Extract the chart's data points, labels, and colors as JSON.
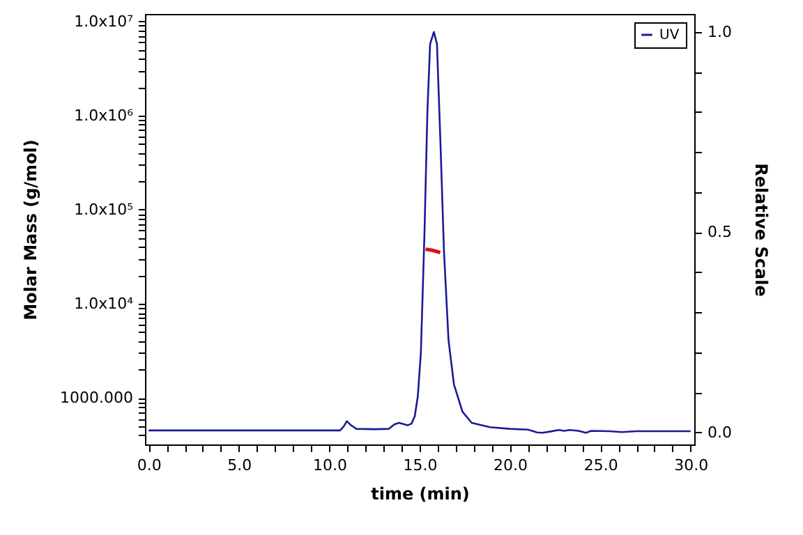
{
  "chart_data": {
    "type": "line",
    "xlabel": "time (min)",
    "ylabel": "Molar Mass (g/mol)",
    "y2label": "Relative Scale",
    "log": "y",
    "grid": false,
    "legend": "top right",
    "marker": "none",
    "line_style": "solid",
    "xlim": [
      -0.2,
      30.2
    ],
    "xticks": [
      {
        "value": 0,
        "label": "0.0"
      },
      {
        "value": 1,
        "label": null
      },
      {
        "value": 2,
        "label": null
      },
      {
        "value": 3,
        "label": null
      },
      {
        "value": 4,
        "label": null
      },
      {
        "value": 5,
        "label": "5.0"
      },
      {
        "value": 6,
        "label": null
      },
      {
        "value": 7,
        "label": null
      },
      {
        "value": 8,
        "label": null
      },
      {
        "value": 9,
        "label": null
      },
      {
        "value": 10,
        "label": "10.0"
      },
      {
        "value": 11,
        "label": null
      },
      {
        "value": 12,
        "label": null
      },
      {
        "value": 13,
        "label": null
      },
      {
        "value": 14,
        "label": null
      },
      {
        "value": 15,
        "label": "15.0"
      },
      {
        "value": 16,
        "label": null
      },
      {
        "value": 17,
        "label": null
      },
      {
        "value": 18,
        "label": null
      },
      {
        "value": 19,
        "label": null
      },
      {
        "value": 20,
        "label": "20.0"
      },
      {
        "value": 21,
        "label": null
      },
      {
        "value": 22,
        "label": null
      },
      {
        "value": 23,
        "label": null
      },
      {
        "value": 24,
        "label": null
      },
      {
        "value": 25,
        "label": "25.0"
      },
      {
        "value": 26,
        "label": null
      },
      {
        "value": 27,
        "label": null
      },
      {
        "value": 28,
        "label": null
      },
      {
        "value": 29,
        "label": null
      },
      {
        "value": 30,
        "label": "30.0"
      }
    ],
    "ylim": [
      320,
      12000000
    ],
    "yticks": [
      {
        "value": 400,
        "label": null
      },
      {
        "value": 500,
        "label": null
      },
      {
        "value": 600,
        "label": null
      },
      {
        "value": 700,
        "label": null
      },
      {
        "value": 800,
        "label": null
      },
      {
        "value": 900,
        "label": null
      },
      {
        "value": 1000,
        "label": "1000.000"
      },
      {
        "value": 2000,
        "label": null
      },
      {
        "value": 3000,
        "label": null
      },
      {
        "value": 4000,
        "label": null
      },
      {
        "value": 5000,
        "label": null
      },
      {
        "value": 6000,
        "label": null
      },
      {
        "value": 7000,
        "label": null
      },
      {
        "value": 8000,
        "label": null
      },
      {
        "value": 9000,
        "label": null
      },
      {
        "value": 10000,
        "label": "1.0x10⁴"
      },
      {
        "value": 20000,
        "label": null
      },
      {
        "value": 30000,
        "label": null
      },
      {
        "value": 40000,
        "label": null
      },
      {
        "value": 50000,
        "label": null
      },
      {
        "value": 60000,
        "label": null
      },
      {
        "value": 70000,
        "label": null
      },
      {
        "value": 80000,
        "label": null
      },
      {
        "value": 90000,
        "label": null
      },
      {
        "value": 100000,
        "label": "1.0x10⁵"
      },
      {
        "value": 200000,
        "label": null
      },
      {
        "value": 300000,
        "label": null
      },
      {
        "value": 400000,
        "label": null
      },
      {
        "value": 500000,
        "label": null
      },
      {
        "value": 600000,
        "label": null
      },
      {
        "value": 700000,
        "label": null
      },
      {
        "value": 800000,
        "label": null
      },
      {
        "value": 900000,
        "label": null
      },
      {
        "value": 1000000,
        "label": "1.0x10⁶"
      },
      {
        "value": 2000000,
        "label": null
      },
      {
        "value": 3000000,
        "label": null
      },
      {
        "value": 4000000,
        "label": null
      },
      {
        "value": 5000000,
        "label": null
      },
      {
        "value": 6000000,
        "label": null
      },
      {
        "value": 7000000,
        "label": null
      },
      {
        "value": 8000000,
        "label": null
      },
      {
        "value": 9000000,
        "label": null
      },
      {
        "value": 10000000,
        "label": "1.0x10⁷"
      }
    ],
    "y2lim": [
      -0.03,
      1.045
    ],
    "y2ticks": [
      {
        "value": 0,
        "label": "0.0"
      },
      {
        "value": 0.1,
        "label": null
      },
      {
        "value": 0.2,
        "label": null
      },
      {
        "value": 0.3,
        "label": null
      },
      {
        "value": 0.4,
        "label": null
      },
      {
        "value": 0.5,
        "label": "0.5"
      },
      {
        "value": 0.6,
        "label": null
      },
      {
        "value": 0.7,
        "label": null
      },
      {
        "value": 0.8,
        "label": null
      },
      {
        "value": 0.9,
        "label": null
      },
      {
        "value": 1,
        "label": "1.0"
      }
    ],
    "series": [
      {
        "color": "#e01010",
        "x": [
          15.33,
          15.7,
          16.14
        ],
        "values": [
          38000,
          37000,
          35000
        ]
      },
      {
        "name": "UV",
        "color": "#1a1a96",
        "axis": "y2",
        "x": [
          0,
          10.6,
          10.8,
          10.97,
          11.2,
          11.5,
          12.5,
          13.3,
          13.6,
          13.85,
          14.1,
          14.35,
          14.55,
          14.73,
          14.9,
          15.07,
          15.27,
          15.43,
          15.58,
          15.79,
          15.96,
          16.14,
          16.35,
          16.6,
          16.9,
          17.37,
          17.88,
          18.9,
          20,
          21,
          21.5,
          21.8,
          22.2,
          22.7,
          23,
          23.3,
          23.8,
          24.2,
          24.5,
          25.5,
          26.2,
          27,
          30
        ],
        "values": [
          0.005,
          0.005,
          0.015,
          0.028,
          0.018,
          0.009,
          0.008,
          0.009,
          0.02,
          0.024,
          0.021,
          0.018,
          0.022,
          0.04,
          0.09,
          0.2,
          0.5,
          0.8,
          0.97,
          1.0,
          0.97,
          0.74,
          0.45,
          0.23,
          0.12,
          0.052,
          0.024,
          0.013,
          0.009,
          0.007,
          0.0,
          -0.001,
          0.002,
          0.006,
          0.004,
          0.006,
          0.004,
          -0.001,
          0.004,
          0.003,
          0.001,
          0.003,
          0.003
        ]
      }
    ]
  }
}
